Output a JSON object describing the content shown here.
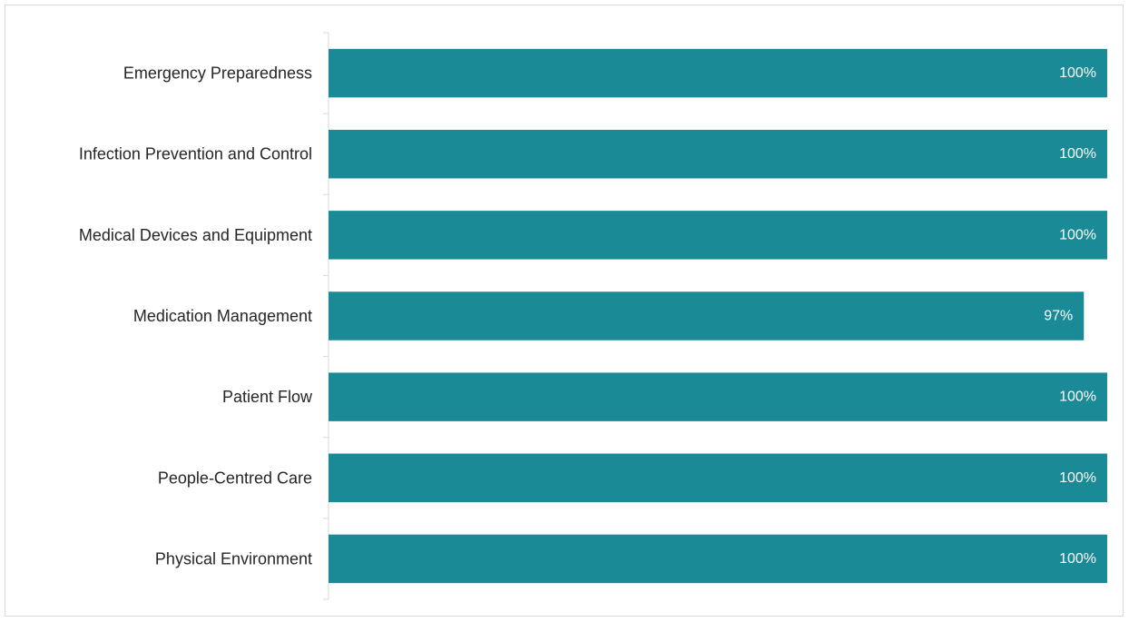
{
  "chart_data": {
    "type": "bar",
    "orientation": "horizontal",
    "categories": [
      "Emergency Preparedness",
      "Infection Prevention and Control",
      "Medical Devices and Equipment",
      "Medication Management",
      "Patient Flow",
      "People-Centred Care",
      "Physical Environment"
    ],
    "values": [
      100,
      100,
      100,
      97,
      100,
      100,
      100
    ],
    "data_labels": [
      "100%",
      "100%",
      "100%",
      "97%",
      "100%",
      "100%",
      "100%"
    ],
    "value_unit": "%",
    "xlim": [
      0,
      100
    ],
    "bar_color": "#1a8a96",
    "grid": false,
    "legend": "none",
    "title": "",
    "xlabel": "",
    "ylabel": ""
  }
}
